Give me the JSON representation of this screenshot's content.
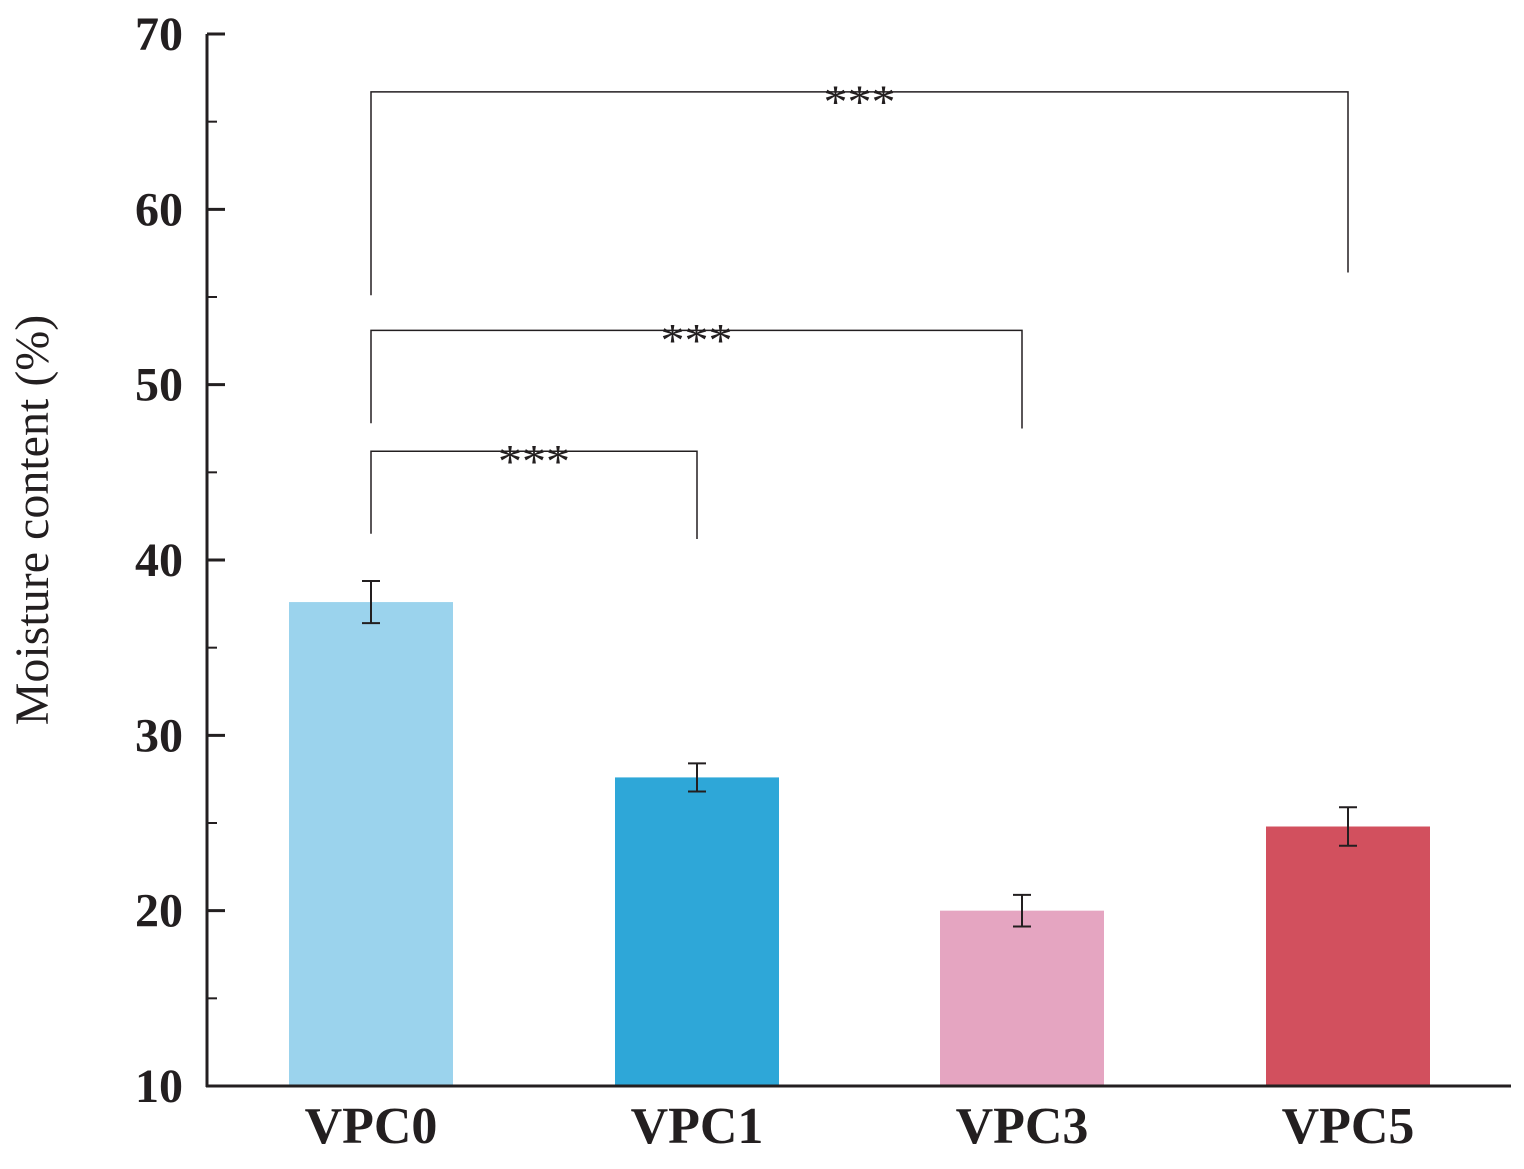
{
  "chart_data": {
    "type": "bar",
    "title": "",
    "xlabel": "",
    "ylabel": "Moisture content (%)",
    "ylim": [
      10,
      70
    ],
    "yticks": [
      10,
      20,
      30,
      40,
      50,
      60,
      70
    ],
    "categories": [
      "VPC0",
      "VPC1",
      "VPC3",
      "VPC5"
    ],
    "values": [
      37.6,
      27.6,
      20.0,
      24.8
    ],
    "errors": [
      1.2,
      0.8,
      0.9,
      1.1
    ],
    "colors": [
      "#9bd3ed",
      "#2ea7d8",
      "#e5a5c1",
      "#d2505e"
    ],
    "grid": false,
    "significance": [
      {
        "from": "VPC0",
        "to": "VPC1",
        "label": "***",
        "y": 46.2,
        "left_end": 41.5,
        "right_end": 41.2
      },
      {
        "from": "VPC0",
        "to": "VPC3",
        "label": "***",
        "y": 53.1,
        "left_end": 47.8,
        "right_end": 47.5
      },
      {
        "from": "VPC0",
        "to": "VPC5",
        "label": "***",
        "y": 66.7,
        "left_end": 55.1,
        "right_end": 56.4
      }
    ]
  }
}
